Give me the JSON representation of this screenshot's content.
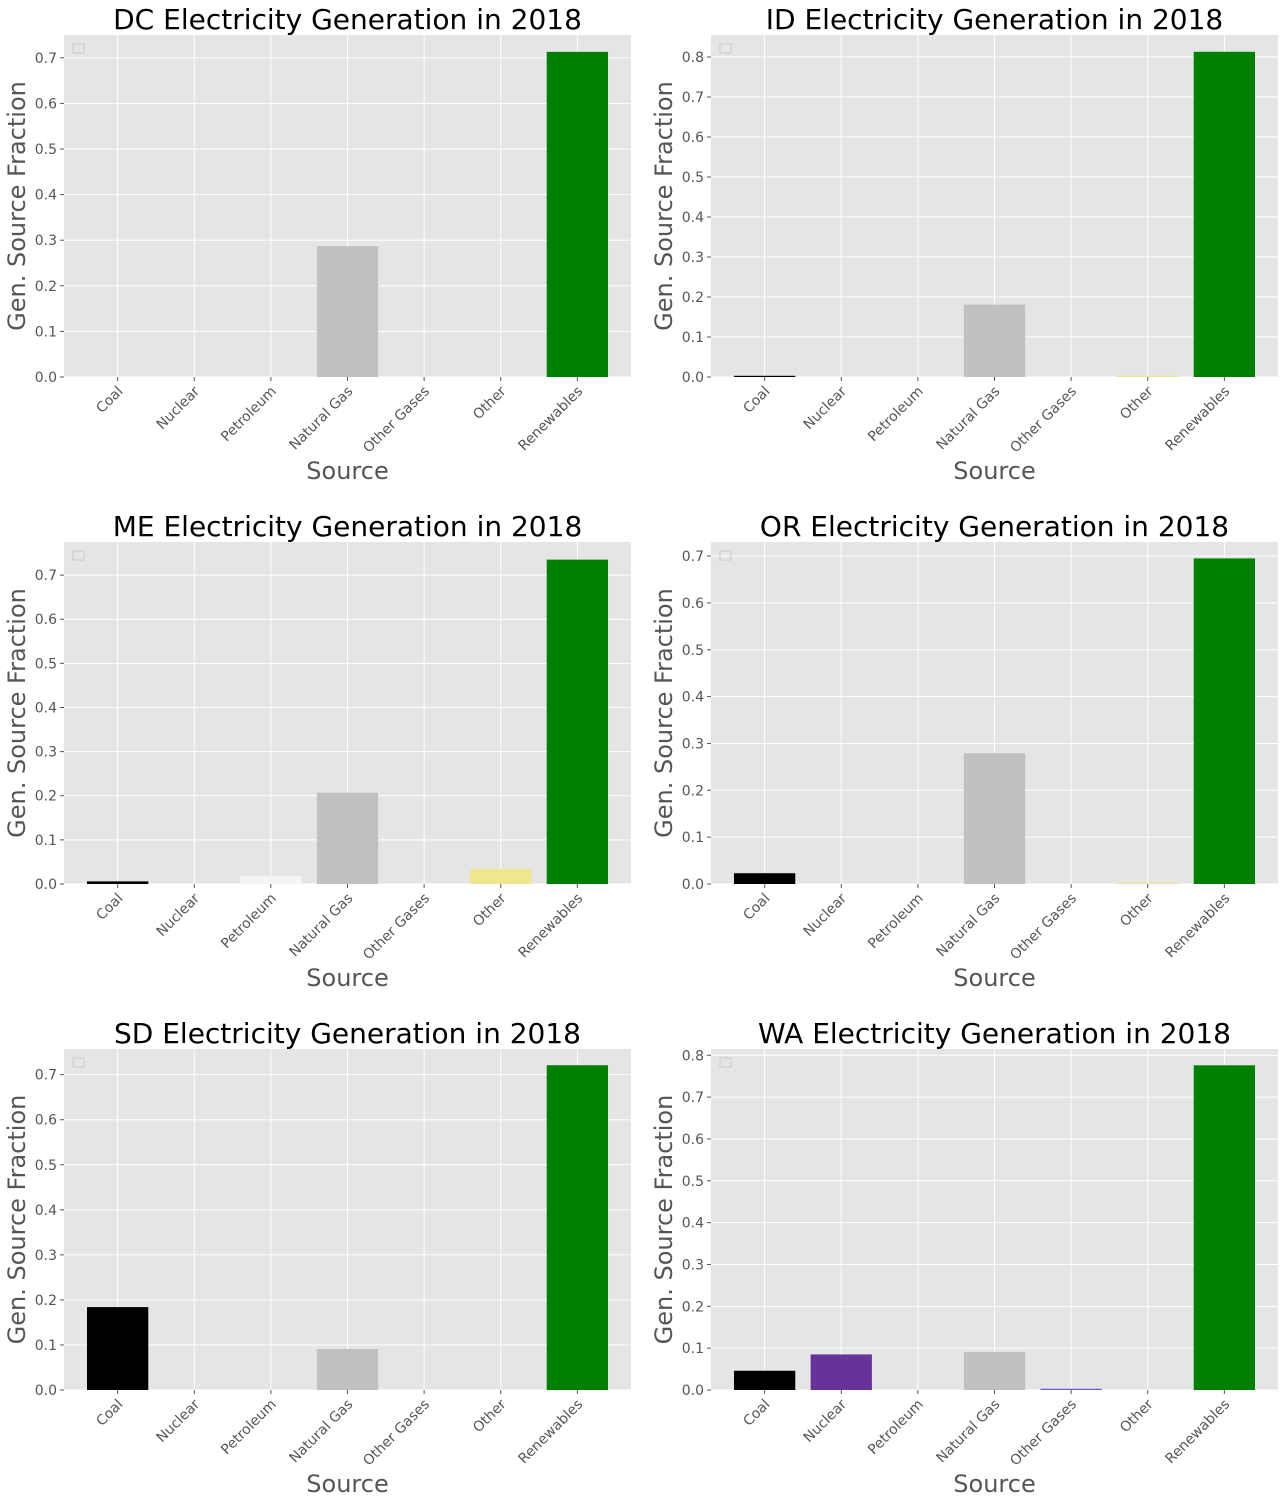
{
  "colors": {
    "Coal": "#000000",
    "Nuclear": "#663399",
    "Petroleum": "#f5f5f5",
    "Natural Gas": "#c0c0c0",
    "Other Gases": "#6a5acd",
    "Other": "#f0e68c",
    "Renewables": "#008000"
  },
  "chart_data": [
    {
      "type": "bar",
      "title": "DC Electricity Generation in 2018",
      "xlabel": "Source",
      "ylabel": "Gen. Source Fraction",
      "categories": [
        "Coal",
        "Nuclear",
        "Petroleum",
        "Natural Gas",
        "Other Gases",
        "Other",
        "Renewables"
      ],
      "values": [
        0.0,
        0.0,
        0.0,
        0.287,
        0.0,
        0.0,
        0.713
      ],
      "ylim": [
        0,
        0.75
      ],
      "yticks": [
        0.0,
        0.1,
        0.2,
        0.3,
        0.4,
        0.5,
        0.6,
        0.7
      ],
      "ytick_labels": [
        "0.0",
        "0.1",
        "0.2",
        "0.3",
        "0.4",
        "0.5",
        "0.6",
        "0.7"
      ],
      "grid": true,
      "legend": "top-left (empty)"
    },
    {
      "type": "bar",
      "title": "ID Electricity Generation in 2018",
      "xlabel": "Source",
      "ylabel": "Gen. Source Fraction",
      "categories": [
        "Coal",
        "Nuclear",
        "Petroleum",
        "Natural Gas",
        "Other Gases",
        "Other",
        "Renewables"
      ],
      "values": [
        0.003,
        0.0,
        0.0,
        0.181,
        0.0,
        0.003,
        0.813
      ],
      "ylim": [
        0,
        0.855
      ],
      "yticks": [
        0.0,
        0.1,
        0.2,
        0.3,
        0.4,
        0.5,
        0.6,
        0.7,
        0.8
      ],
      "ytick_labels": [
        "0.0",
        "0.1",
        "0.2",
        "0.3",
        "0.4",
        "0.5",
        "0.6",
        "0.7",
        "0.8"
      ],
      "grid": true,
      "legend": "top-left (empty)"
    },
    {
      "type": "bar",
      "title": "ME Electricity Generation in 2018",
      "xlabel": "Source",
      "ylabel": "Gen. Source Fraction",
      "categories": [
        "Coal",
        "Nuclear",
        "Petroleum",
        "Natural Gas",
        "Other Gases",
        "Other",
        "Renewables"
      ],
      "values": [
        0.006,
        0.0,
        0.018,
        0.207,
        0.0,
        0.034,
        0.735
      ],
      "ylim": [
        0,
        0.775
      ],
      "yticks": [
        0.0,
        0.1,
        0.2,
        0.3,
        0.4,
        0.5,
        0.6,
        0.7
      ],
      "ytick_labels": [
        "0.0",
        "0.1",
        "0.2",
        "0.3",
        "0.4",
        "0.5",
        "0.6",
        "0.7"
      ],
      "grid": true,
      "legend": "top-left (empty)"
    },
    {
      "type": "bar",
      "title": "OR Electricity Generation in 2018",
      "xlabel": "Source",
      "ylabel": "Gen. Source Fraction",
      "categories": [
        "Coal",
        "Nuclear",
        "Petroleum",
        "Natural Gas",
        "Other Gases",
        "Other",
        "Renewables"
      ],
      "values": [
        0.023,
        0.0,
        0.0,
        0.279,
        0.0,
        0.002,
        0.695
      ],
      "ylim": [
        0,
        0.73
      ],
      "yticks": [
        0.0,
        0.1,
        0.2,
        0.3,
        0.4,
        0.5,
        0.6,
        0.7
      ],
      "ytick_labels": [
        "0.0",
        "0.1",
        "0.2",
        "0.3",
        "0.4",
        "0.5",
        "0.6",
        "0.7"
      ],
      "grid": true,
      "legend": "top-left (empty)"
    },
    {
      "type": "bar",
      "title": "SD Electricity Generation in 2018",
      "xlabel": "Source",
      "ylabel": "Gen. Source Fraction",
      "categories": [
        "Coal",
        "Nuclear",
        "Petroleum",
        "Natural Gas",
        "Other Gases",
        "Other",
        "Renewables"
      ],
      "values": [
        0.184,
        0.0,
        0.0,
        0.091,
        0.0,
        0.0,
        0.721
      ],
      "ylim": [
        0,
        0.757
      ],
      "yticks": [
        0.0,
        0.1,
        0.2,
        0.3,
        0.4,
        0.5,
        0.6,
        0.7
      ],
      "ytick_labels": [
        "0.0",
        "0.1",
        "0.2",
        "0.3",
        "0.4",
        "0.5",
        "0.6",
        "0.7"
      ],
      "grid": true,
      "legend": "top-left (empty)"
    },
    {
      "type": "bar",
      "title": "WA Electricity Generation in 2018",
      "xlabel": "Source",
      "ylabel": "Gen. Source Fraction",
      "categories": [
        "Coal",
        "Nuclear",
        "Petroleum",
        "Natural Gas",
        "Other Gases",
        "Other",
        "Renewables"
      ],
      "values": [
        0.046,
        0.085,
        0.0,
        0.091,
        0.003,
        0.0,
        0.776
      ],
      "ylim": [
        0,
        0.815
      ],
      "yticks": [
        0.0,
        0.1,
        0.2,
        0.3,
        0.4,
        0.5,
        0.6,
        0.7,
        0.8
      ],
      "ytick_labels": [
        "0.0",
        "0.1",
        "0.2",
        "0.3",
        "0.4",
        "0.5",
        "0.6",
        "0.7",
        "0.8"
      ],
      "grid": true,
      "legend": "top-left (empty)"
    }
  ]
}
